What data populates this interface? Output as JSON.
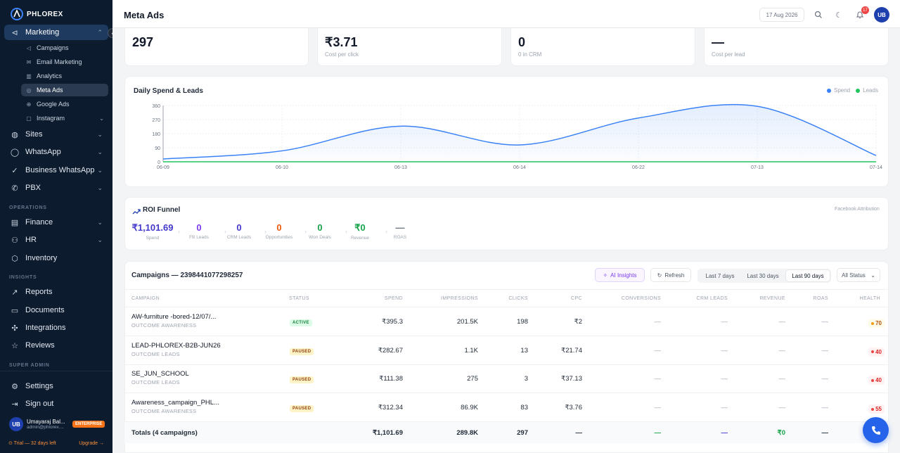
{
  "brand": {
    "name": "PHLOREX"
  },
  "sidebar": {
    "marketing": {
      "label": "Marketing",
      "children": [
        {
          "label": "Campaigns",
          "icon": "megaphone-icon"
        },
        {
          "label": "Email Marketing",
          "icon": "mail-icon"
        },
        {
          "label": "Analytics",
          "icon": "chart-icon"
        },
        {
          "label": "Meta Ads",
          "icon": "meta-icon",
          "active": true
        },
        {
          "label": "Google Ads",
          "icon": "google-icon"
        },
        {
          "label": "Instagram",
          "icon": "instagram-icon"
        }
      ]
    },
    "items": [
      {
        "label": "Sites"
      },
      {
        "label": "WhatsApp"
      },
      {
        "label": "Business WhatsApp"
      },
      {
        "label": "PBX"
      }
    ],
    "operations_label": "OPERATIONS",
    "operations": [
      {
        "label": "Finance"
      },
      {
        "label": "HR"
      },
      {
        "label": "Inventory"
      }
    ],
    "insights_label": "INSIGHTS",
    "insights": [
      {
        "label": "Reports"
      },
      {
        "label": "Documents"
      },
      {
        "label": "Integrations"
      },
      {
        "label": "Reviews"
      }
    ],
    "super_admin_label": "SUPER ADMIN",
    "settings": "Settings",
    "signout": "Sign out",
    "user": {
      "initials": "UB",
      "name": "Umayaraj Bal...",
      "email": "admin@phlorex....",
      "plan": "ENTERPRISE"
    },
    "trial": {
      "text": "⊙ Trial — 32 days left",
      "upgrade": "Upgrade →"
    }
  },
  "topbar": {
    "title": "Meta Ads",
    "date": "17 Aug 2026",
    "notifications": "17",
    "avatar": "UB"
  },
  "stats": [
    {
      "value": "297",
      "sub": ""
    },
    {
      "value": "₹3.71",
      "sub": "Cost per click"
    },
    {
      "value": "0",
      "sub": "0 in CRM"
    },
    {
      "value": "—",
      "sub": "Cost per lead"
    }
  ],
  "spend_chart": {
    "title": "Daily Spend & Leads",
    "legend": [
      {
        "name": "Spend",
        "color": "#3b82f6"
      },
      {
        "name": "Leads",
        "color": "#22c55e"
      }
    ]
  },
  "chart_data": {
    "type": "area",
    "title": "Daily Spend & Leads",
    "x": [
      "06-09",
      "06-10",
      "06-13",
      "06-14",
      "06-22",
      "07-13",
      "07-14"
    ],
    "ylim": [
      0,
      360
    ],
    "yticks": [
      0,
      90,
      180,
      270,
      360
    ],
    "grid": true,
    "legend_position": "top-right",
    "series": [
      {
        "name": "Spend",
        "color": "#3b82f6",
        "values": [
          18,
          70,
          228,
          108,
          280,
          355,
          40
        ]
      },
      {
        "name": "Leads",
        "color": "#22c55e",
        "values": [
          0,
          0,
          0,
          0,
          0,
          0,
          0
        ]
      }
    ]
  },
  "roi": {
    "title": "ROI Funnel",
    "attribution": "Facebook Attribution",
    "steps": [
      {
        "value": "₹1,101.69",
        "label": "Spend",
        "color": "#4338ca"
      },
      {
        "value": "0",
        "label": "FB Leads",
        "color": "#7c3aed"
      },
      {
        "value": "0",
        "label": "CRM Leads",
        "color": "#4338ca"
      },
      {
        "value": "0",
        "label": "Opportunities",
        "color": "#ea580c"
      },
      {
        "value": "0",
        "label": "Won Deals",
        "color": "#16a34a"
      },
      {
        "value": "₹0",
        "label": "Revenue",
        "color": "#16a34a"
      },
      {
        "value": "—",
        "label": "ROAS",
        "color": "#6b7280"
      }
    ]
  },
  "campaigns": {
    "title": "Campaigns — 2398441077298257",
    "ai_insights": "AI Insights",
    "refresh": "Refresh",
    "ranges": [
      "Last 7 days",
      "Last 30 days",
      "Last 90 days"
    ],
    "active_range": "Last 90 days",
    "status_filter": "All Status",
    "columns": [
      "CAMPAIGN",
      "STATUS",
      "SPEND",
      "IMPRESSIONS",
      "CLICKS",
      "CPC",
      "CONVERSIONS",
      "CRM LEADS",
      "REVENUE",
      "ROAS",
      "HEALTH"
    ],
    "rows": [
      {
        "name": "AW-furniture -bored-12/07/...",
        "objective": "OUTCOME AWARENESS",
        "status": "ACTIVE",
        "spend": "₹395.3",
        "impressions": "201.5K",
        "clicks": "198",
        "cpc": "₹2",
        "conversions": "—",
        "crm_leads": "—",
        "revenue": "—",
        "roas": "—",
        "health": "70"
      },
      {
        "name": "LEAD-PHLOREX-B2B-JUN26",
        "objective": "OUTCOME LEADS",
        "status": "PAUSED",
        "spend": "₹282.67",
        "impressions": "1.1K",
        "clicks": "13",
        "cpc": "₹21.74",
        "conversions": "—",
        "crm_leads": "—",
        "revenue": "—",
        "roas": "—",
        "health": "40"
      },
      {
        "name": "SE_JUN_SCHOOL",
        "objective": "OUTCOME LEADS",
        "status": "PAUSED",
        "spend": "₹111.38",
        "impressions": "275",
        "clicks": "3",
        "cpc": "₹37.13",
        "conversions": "—",
        "crm_leads": "—",
        "revenue": "—",
        "roas": "—",
        "health": "40"
      },
      {
        "name": "Awareness_campaign_PHL...",
        "objective": "OUTCOME AWARENESS",
        "status": "PAUSED",
        "spend": "₹312.34",
        "impressions": "86.9K",
        "clicks": "83",
        "cpc": "₹3.76",
        "conversions": "—",
        "crm_leads": "—",
        "revenue": "—",
        "roas": "—",
        "health": "55"
      }
    ],
    "totals": {
      "label": "Totals (4 campaigns)",
      "spend": "₹1,101.69",
      "impressions": "289.8K",
      "clicks": "297",
      "cpc": "—",
      "conversions": "—",
      "crm_leads": "—",
      "revenue": "₹0",
      "roas": "—"
    }
  }
}
